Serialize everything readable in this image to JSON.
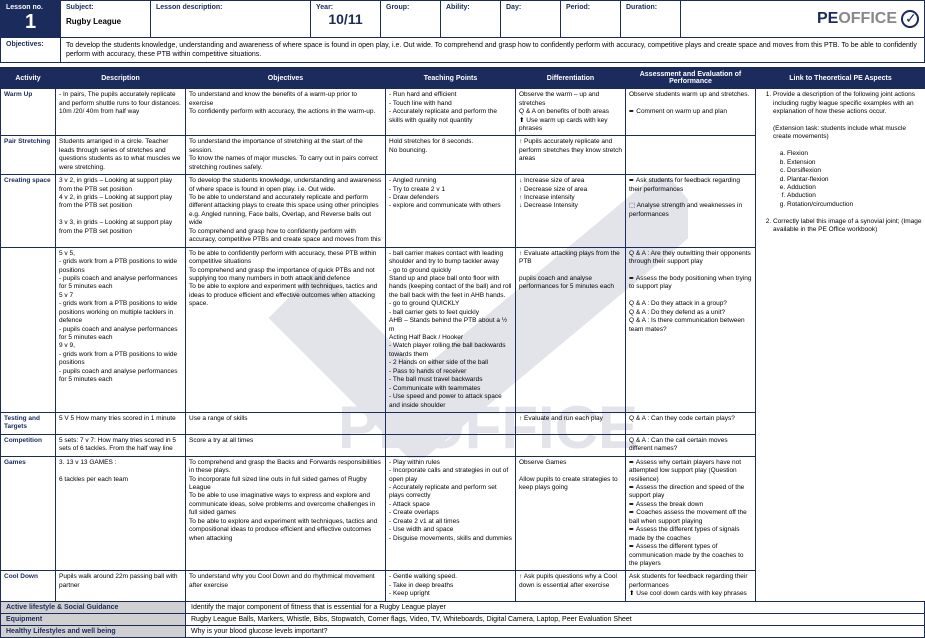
{
  "header": {
    "lesson_no_label": "Lesson no.",
    "lesson_no": "1",
    "subject_label": "Subject:",
    "subject": "Rugby League",
    "desc_label": "Lesson description:",
    "desc": "",
    "year_label": "Year:",
    "year": "10/11",
    "group_label": "Group:",
    "ability_label": "Ability:",
    "day_label": "Day:",
    "period_label": "Period:",
    "duration_label": "Duration:",
    "logo_pe": "PE",
    "logo_office": "OFFICE"
  },
  "objectives_label": "Objectives:",
  "objectives_text": "To develop the students knowledge, understanding and awareness of where space is found in open play, i.e. Out wide. To comprehend and grasp how to confidently perform with accuracy, competitive plays and create space and moves from this PTB. To be able to confidently perform with accuracy, these PTB within competitive situations.",
  "cols": {
    "activity": "Activity",
    "description": "Description",
    "objectives": "Objectives",
    "teaching": "Teaching Points",
    "diff": "Differentiation",
    "assess": "Assessment and Evaluation of Performance",
    "link": "Link to Theoretical PE Aspects"
  },
  "rows": {
    "warmup": {
      "activity": "Warm Up",
      "desc": "- In pairs, The pupils accurately replicate and perform shuttle runs to four distances. 10m /20/ 40m from half way",
      "obj": "To understand and know the benefits of a warm-up prior to exercise\nTo confidently perform with accuracy, the actions in the warm-up.",
      "tp": "- Run hard and efficient\n- Touch line with hand\n- Accurately replicate and perform the skills with quality not quantity",
      "diff": "Observe the warm – up and stretches\nQ & A on benefits of both areas\n⬆ Use warm up cards with key phrases",
      "assess": "Observe students warm up and stretches.\n\n➨ Comment on warm up and plan"
    },
    "pair": {
      "activity": "Pair Stretching",
      "desc": "Students arranged in a circle. Teacher leads through series of stretches and questions students as to what muscles we were stretching.",
      "obj": "To understand the importance of stretching at the start of the session.\nTo know the names of major muscles. To carry out in pairs correct stretching routines safely.",
      "tp": "Hold stretches for 8 seconds.\nNo bouncing.",
      "diff": "↑ Pupils accurately replicate and perform stretches they know stretch areas"
    },
    "creating": {
      "activity": "Creating space",
      "desc": "3 v 2, in grids – Looking at support play from the PTB set position\n4 v 2, in grids – Looking at support play from the PTB set position\n\n3 v 3, in grids – Looking at support play from the PTB set position",
      "obj": "To develop the students knowledge, understanding and awareness of where space is found in open play. i.e. Out wide.\nTo be able to understand and accurately replicate and perform different attacking plays to create this space using other principles e.g. Angled running, Face balls, Overlap, and Reverse balls out wide\nTo comprehend and grasp how to confidently perform with accuracy, competitive PTBs and create space and moves from this",
      "tp": "- Angled running\n- Try to create 2 v 1\n- Draw defenders\n- explore and communicate with others",
      "diff": "↓ Increase size of area\n↑ Decrease size of area\n↑ Increase intensity\n↓ Decrease Intensity",
      "assess": "➨ Ask students for feedback regarding their performances\n\n⬚ Analyse strength and weaknesses in performances"
    },
    "ptb": {
      "desc": "5 v 5,\n- grids work from a PTB positions to wide positions\n- pupils coach and analyse performances for 5 minutes each\n5 v 7\n- grids work from a PTB positions to wide positions working on multiple tacklers in defence\n- pupils coach and analyse performances for 5 minutes each\n9 v 9,\n- grids work from a PTB positions to wide positions\n- pupils coach and analyse performances for 5 minutes each",
      "obj": "To be able to confidently perform with accuracy, these PTB within competitive situations\nTo comprehend and grasp the importance of quick PTBs and not supplying too many numbers in both attack and defence\nTo be able to explore and experiment with techniques, tactics and ideas to produce efficient and effective outcomes when attacking space.",
      "tp": "- ball carrier makes contact with leading shoulder and try to bump tackler away\n- go to ground quickly\nStand up and place ball onto floor with hands (keeping contact of the ball) and roll the ball back with the feet in AHB hands.\n- go to ground QUICKLY\n- ball carrier gets to feet quickly\nAHB – Stands behind the PTB about a ½ m\nActing Half Back / Hooker\n- Watch player rolling the ball backwards towards them\n- 2 Hands on either side of the ball\n- Pass to hands of receiver\n- The ball must travel backwards\n- Communicate with teammates\n- Use speed and power to attack space and inside shoulder",
      "diff": "↑ Evaluate attacking plays from the PTB\n\npupils coach and analyse performances for 5 minutes each",
      "assess": "Q & A : Are they outwitting their opponents through their support play\n\n➨ Assess the body positioning when trying to support play\n\nQ & A : Do they attack in a group?\nQ & A : Do they defend as a unit?\nQ & A : Is there communication between team mates?"
    },
    "testing": {
      "activity": "Testing and Targets",
      "desc": "5 V 5 How many tries scored in 1 minute",
      "obj": "Use a range of skills",
      "diff": "↑ Evaluate and run each play",
      "assess": "Q & A : Can they code certain plays?"
    },
    "comp": {
      "activity": "Competition",
      "desc": "5 sets: 7 v 7: How many tries scored in 5 sets of 6 tackles. From the half way line",
      "obj": "Score a try at all times",
      "assess": "Q & A : Can the call certain moves different names?"
    },
    "games": {
      "activity": "Games",
      "desc": "3. 13 v 13 GAMES :\n\n6 tackles per each team",
      "obj": "To comprehend and grasp the Backs and Forwards responsibilities in these plays.\nTo incorporate full sized line outs in full sided games of Rugby League\nTo be able to use imaginative ways to express and explore and communicate ideas, solve problems and overcome challenges in full sided games\nTo be able to explore and experiment with techniques, tactics and compositional ideas to produce efficient and effective outcomes when attacking",
      "tp": "- Play within rules\n- Incorporate calls and strategies in out of open play\n- Accurately replicate and perform set plays correctly\n- Attack space\n- Create overlaps\n- Create 2 v1 at all times\n- Use width and space\n- Disguise movements, skills and dummies",
      "diff": "Observe Games\n\nAllow pupils to create strategies to keep plays going",
      "assess": "➨ Assess why certain players have not attempted low support play (Question resilience)\n➨ Assess the direction and speed of the support play\n➨ Assess the break down\n➨ Coaches assess the movement off the ball when support playing\n➨ Assess the different types of signals made by the coaches\n➨ Assess the different types of communication made by the coaches to the players"
    },
    "cooldown": {
      "activity": "Cool Down",
      "desc": "Pupils walk around 22m passing ball with partner",
      "obj": "To understand why you Cool Down and do rhythmical movement after exercise",
      "tp": "- Gentle walking speed.\n- Take in deep breaths\n- Keep upright",
      "diff": "↑ Ask pupils questions why a Cool down is essential after exercise",
      "assess": "Ask students for feedback regarding their performances\n⬆ Use cool down cards with key phrases"
    }
  },
  "link": {
    "intro": "Provide a description of the following joint actions including rugby league specific examples with an explanation of how these actions occur.",
    "ext": "(Extension task: students include what muscle create movements)",
    "letters": [
      "Flexion",
      "Extension",
      "Dorsiflexion",
      "Plantar-flexion",
      "Adduction",
      "Abduction",
      "Rotation/circumduction"
    ],
    "item2": "Correctly label this image of a synovial joint; (Image available in the PE Office workbook)"
  },
  "footer": {
    "active_label": "Active lifestyle & Social Guidance",
    "active_text": "Identify the major component of fitness that is essential for a Rugby League player",
    "equip_label": "Equipment",
    "equip_text": "Rugby League Balls, Markers, Whistle, Bibs, Stopwatch, Corner flags, Video, TV, Whiteboards, Digital Camera, Laptop, Peer Evaluation Sheet",
    "healthy_label": "Healthy Lifestyles and well being",
    "healthy_text": "Why is your blood glucose levels important?"
  }
}
